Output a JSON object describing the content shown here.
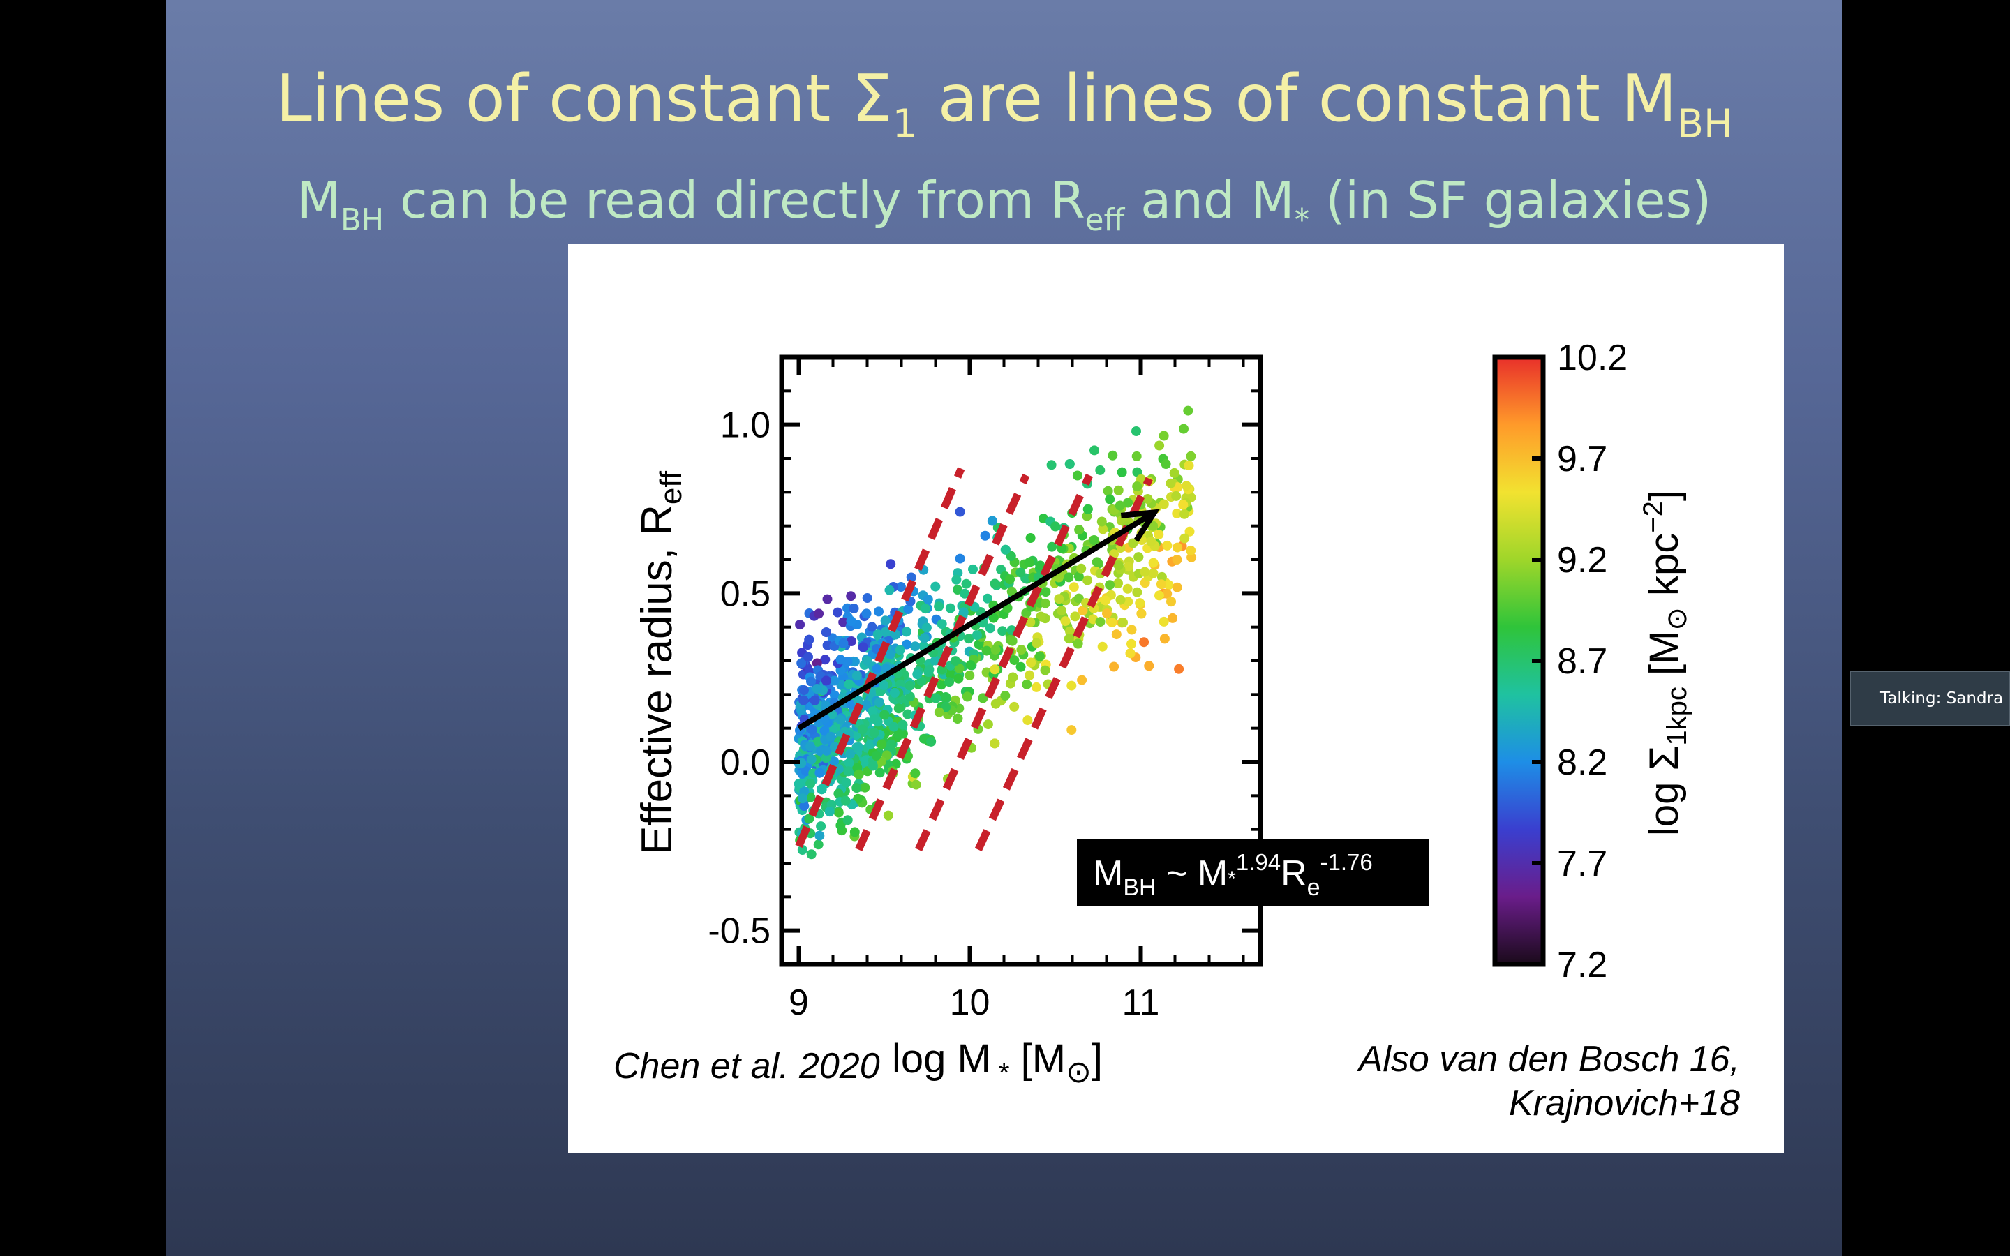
{
  "slide": {
    "title_main": "Lines of constant Σ",
    "title_sigma_sub": "1",
    "title_mid": " are lines of constant M",
    "title_bh_sub": "BH",
    "subtitle_m": "M",
    "subtitle_bh_sub": "BH",
    "subtitle_text1": " can be read directly from R",
    "subtitle_eff_sub": "eff",
    "subtitle_text2": " and M",
    "subtitle_star": "*",
    "subtitle_text3": " (in SF galaxies)"
  },
  "figure": {
    "citation": "Chen et al. 2020",
    "also_line1": "Also van den Bosch 16,",
    "also_line2": "Krajnovich+18"
  },
  "annotation": {
    "m": "M",
    "bh": "BH",
    "tilde": " ~ M",
    "star": "*",
    "exp1": "1.94",
    "r": "R",
    "e": "e",
    "exp2": "-1.76"
  },
  "talking": {
    "label": "Talking: Sandra F"
  },
  "chart_data": {
    "type": "scatter",
    "xlabel": "log M * [M ⊙ ]",
    "ylabel": "Effective radius, R eff",
    "xlim": [
      8.9,
      11.7
    ],
    "ylim": [
      -0.6,
      1.2
    ],
    "x_ticks": [
      "9",
      "10",
      "11"
    ],
    "y_ticks": [
      "1.0",
      "0.5",
      "0.0",
      "-0.5"
    ],
    "colorbar": {
      "label": "log Σ 1kpc [M ⊙ kpc ⁻² ]",
      "min": 7.2,
      "max": 10.2,
      "ticks": [
        "10.2",
        "9.7",
        "9.2",
        "8.7",
        "8.2",
        "7.7",
        "7.2"
      ],
      "colors": [
        "#1a0a1a",
        "#6a1d8a",
        "#3a3fcf",
        "#1e8ee6",
        "#1fc2a0",
        "#2fc43a",
        "#9fd62a",
        "#f2e230",
        "#ff9a2a",
        "#e8302a"
      ]
    },
    "points_note": "Approximately 1300 galaxies; log R_eff from about -0.4 to 1.15 and log M* from 9.0 to 11.3, colored by log Σ_1kpc.",
    "dashed_lines": [
      {
        "x": [
          9.0,
          9.95
        ],
        "y": [
          -0.25,
          0.87
        ]
      },
      {
        "x": [
          9.35,
          10.33
        ],
        "y": [
          -0.26,
          0.85
        ]
      },
      {
        "x": [
          9.7,
          10.7
        ],
        "y": [
          -0.26,
          0.85
        ]
      },
      {
        "x": [
          10.05,
          11.05
        ],
        "y": [
          -0.26,
          0.84
        ]
      }
    ],
    "arrow": {
      "x": [
        9.0,
        11.08
      ],
      "y": [
        0.1,
        0.74
      ]
    },
    "line_colors": {
      "dashed": "#c8202a",
      "arrow": "#000000"
    }
  }
}
